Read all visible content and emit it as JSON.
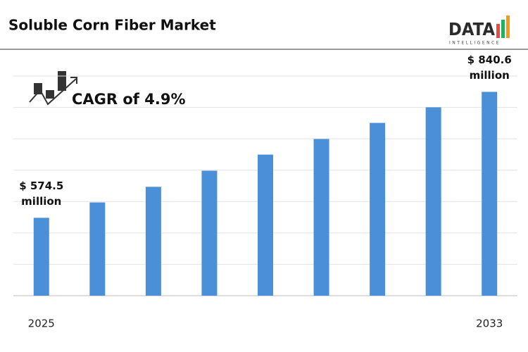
{
  "chart_data": {
    "type": "bar",
    "title": "Soluble Corn Fiber Market",
    "annotation": "CAGR of 4.9%",
    "categories": [
      "2025",
      null,
      null,
      null,
      null,
      null,
      null,
      null,
      "2033"
    ],
    "values": [
      574.5,
      607,
      640,
      674,
      708,
      741,
      775,
      808,
      840.6
    ],
    "value_labels": [
      "$ 574.5 million",
      null,
      null,
      null,
      null,
      null,
      null,
      null,
      "$ 840.6 million"
    ],
    "color": "#4a90d9",
    "ylim": [
      410,
      874
    ]
  },
  "logo": {
    "text": "DATA",
    "subtext": "INTELLIGENCE"
  }
}
